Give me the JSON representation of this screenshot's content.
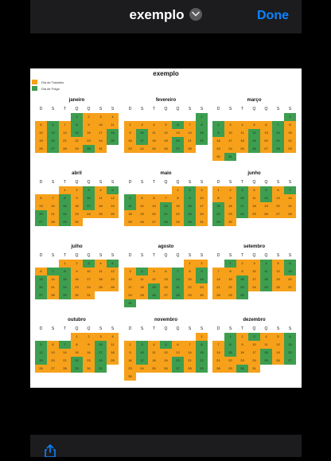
{
  "header": {
    "title": "exemplo",
    "done_label": "Done"
  },
  "icons": {
    "chevron": "chevron-down-icon",
    "share": "share-icon"
  },
  "colors": {
    "work": "#f7a11a",
    "off": "#3d9e4f",
    "accent": "#0a84ff"
  },
  "document": {
    "title": "exemplo",
    "legend": [
      {
        "label": "Dia de Trabalho",
        "color": "#f7a11a"
      },
      {
        "label": "Dia de Folga",
        "color": "#3d9e4f"
      }
    ],
    "day_headers": [
      "D",
      "S",
      "T",
      "Q",
      "Q",
      "S",
      "S"
    ],
    "months": [
      {
        "name": "janeiro",
        "start": 3,
        "days": 31,
        "off": [
          1,
          6,
          8,
          13,
          15,
          18,
          20,
          25,
          27,
          30
        ]
      },
      {
        "name": "fevereiro",
        "start": 6,
        "days": 28,
        "off": [
          1,
          6,
          8,
          10,
          15,
          17,
          20,
          22,
          27
        ]
      },
      {
        "name": "março",
        "start": 6,
        "days": 31,
        "off": [
          1,
          2,
          7,
          9,
          12,
          14,
          19,
          21,
          26,
          28,
          31
        ]
      },
      {
        "name": "abril",
        "start": 2,
        "days": 30,
        "off": [
          3,
          5,
          8,
          10,
          15,
          17,
          20,
          22,
          27,
          29
        ]
      },
      {
        "name": "maio",
        "start": 4,
        "days": 31,
        "off": [
          2,
          4,
          9,
          11,
          14,
          16,
          21,
          23,
          28,
          30
        ]
      },
      {
        "name": "junho",
        "start": 0,
        "days": 30,
        "off": [
          7,
          3,
          5,
          10,
          12,
          15,
          17,
          22,
          24,
          29
        ]
      },
      {
        "name": "julho",
        "start": 2,
        "days": 31,
        "off": [
          3,
          5,
          7,
          8,
          13,
          15,
          20,
          22,
          27,
          29
        ]
      },
      {
        "name": "agosto",
        "start": 5,
        "days": 31,
        "off": [
          4,
          7,
          9,
          14,
          16,
          19,
          21,
          26,
          28,
          31
        ]
      },
      {
        "name": "setembro",
        "start": 1,
        "days": 30,
        "off": [
          1,
          4,
          6,
          11,
          13,
          16,
          18,
          23,
          25,
          30
        ]
      },
      {
        "name": "outubro",
        "start": 3,
        "days": 31,
        "off": [
          5,
          7,
          10,
          12,
          17,
          19,
          22,
          24,
          29,
          31
        ]
      },
      {
        "name": "novembro",
        "start": 6,
        "days": 30,
        "off": [
          3,
          5,
          8,
          10,
          15,
          17,
          20,
          22,
          27,
          29
        ]
      },
      {
        "name": "dezembro",
        "start": 1,
        "days": 31,
        "off": [
          1,
          3,
          6,
          8,
          13,
          15,
          18,
          20,
          25,
          27,
          30
        ]
      }
    ]
  }
}
